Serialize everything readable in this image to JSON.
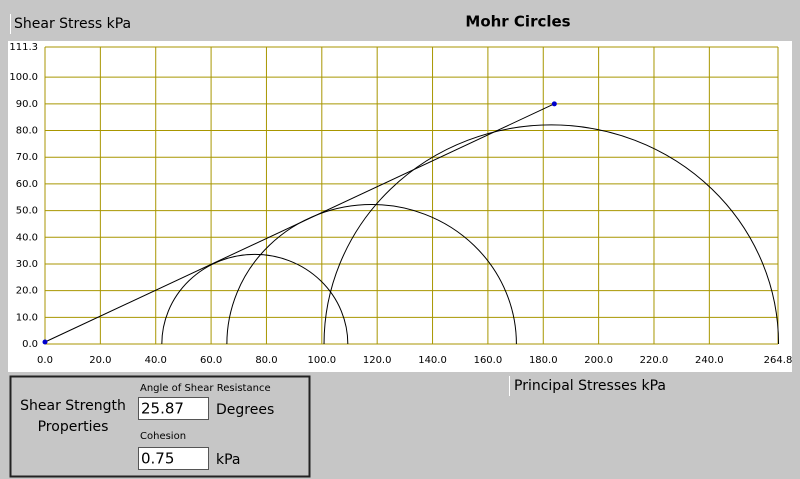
{
  "chart_data": {
    "type": "mohr",
    "title": "Mohr Circles",
    "ylabel": "Shear Stress  kPa",
    "xlabel": "Principal Stresses  kPa",
    "xlim": [
      0,
      264.8
    ],
    "ylim": [
      0,
      111.3
    ],
    "xticks": [
      {
        "value": 0,
        "label": "0.0"
      },
      {
        "value": 20,
        "label": "20.0"
      },
      {
        "value": 40,
        "label": "40.0"
      },
      {
        "value": 60,
        "label": "60.0"
      },
      {
        "value": 80,
        "label": "80.0"
      },
      {
        "value": 100,
        "label": "100.0"
      },
      {
        "value": 120,
        "label": "120.0"
      },
      {
        "value": 140,
        "label": "140.0"
      },
      {
        "value": 160,
        "label": "160.0"
      },
      {
        "value": 180,
        "label": "180.0"
      },
      {
        "value": 200,
        "label": "200.0"
      },
      {
        "value": 220,
        "label": "220.0"
      },
      {
        "value": 240,
        "label": "240.0"
      },
      264.8
    ],
    "yticks": [
      {
        "value": 0,
        "label": "0.0"
      },
      {
        "value": 10,
        "label": "10.0"
      },
      {
        "value": 20,
        "label": "20.0"
      },
      {
        "value": 30,
        "label": "30.0"
      },
      {
        "value": 40,
        "label": "40.0"
      },
      {
        "value": 50,
        "label": "50.0"
      },
      {
        "value": 60,
        "label": "60.0"
      },
      {
        "value": 70,
        "label": "70.0"
      },
      {
        "value": 80,
        "label": "80.0"
      },
      {
        "value": 90,
        "label": "90.0"
      },
      {
        "value": 100,
        "label": "100.0"
      },
      111.3
    ],
    "grid": true,
    "grid_color": "#a89600",
    "circle_color": "#000000",
    "point_color": "#0000cc",
    "circles": [
      {
        "center": 75.8,
        "radius": 33.6
      },
      {
        "center": 118,
        "radius": 52.3
      },
      {
        "center": 182.9,
        "radius": 82.1
      }
    ],
    "envelope": {
      "x": [
        0,
        184
      ],
      "y": [
        0.75,
        90
      ]
    }
  },
  "panel": {
    "title": "Shear Strength Properties",
    "angle_label": "Angle of Shear Resistance",
    "angle_value": "25.87",
    "angle_unit": "Degrees",
    "cohesion_label": "Cohesion",
    "cohesion_value": "0.75",
    "cohesion_unit": "kPa"
  }
}
